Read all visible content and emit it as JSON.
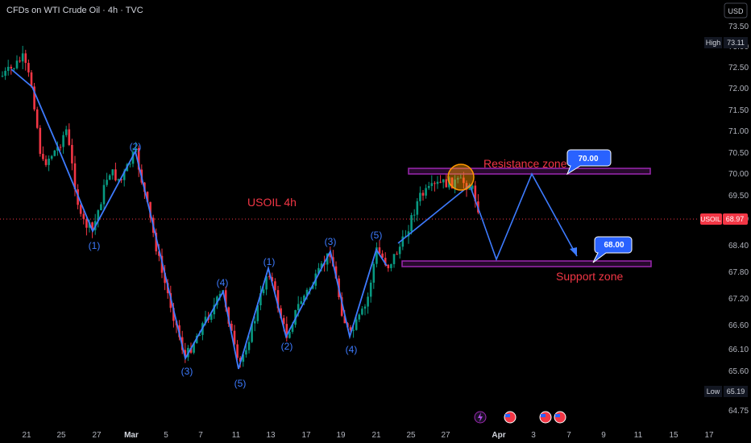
{
  "title": "CFDs on WTI Crude Oil · 4h · TVC",
  "currency": "USD",
  "symbol_label": "USOIL 4h",
  "price_badge": {
    "symbol": "USOIL",
    "value": "68.97"
  },
  "high_badge": {
    "label": "High",
    "value": "73.11"
  },
  "low_badge": {
    "label": "Low",
    "value": "65.19"
  },
  "resistance_label": "Resistance zone",
  "support_label": "Support zone",
  "callout_resistance": "70.00",
  "callout_support": "68.00",
  "colors": {
    "up": "#089981",
    "down": "#f23645",
    "wave": "#3d7bff",
    "zone": "#9c27b0",
    "bg": "#000000"
  },
  "chart_data": {
    "type": "candlestick",
    "title": "CFDs on WTI Crude Oil · 4h · TVC",
    "y_ticks": [
      "73.50",
      "73.00",
      "72.50",
      "72.00",
      "71.50",
      "71.00",
      "70.50",
      "70.00",
      "69.50",
      "69.00",
      "68.40",
      "67.80",
      "67.20",
      "66.60",
      "66.10",
      "65.60",
      "64.75"
    ],
    "x_ticks": [
      "21",
      "25",
      "27",
      "Mar",
      "5",
      "7",
      "11",
      "13",
      "17",
      "19",
      "21",
      "25",
      "27",
      "Apr",
      "3",
      "7",
      "9",
      "11",
      "15",
      "17"
    ],
    "last_price": 68.97,
    "high": 73.11,
    "low": 65.19,
    "resistance_zone": 70.0,
    "support_zone": 68.0,
    "wave_labels": [
      {
        "label": "(1)",
        "price": 68.55
      },
      {
        "label": "(2)",
        "price": 70.6
      },
      {
        "label": "(3)",
        "price": 65.65
      },
      {
        "label": "(4)",
        "price": 67.55
      },
      {
        "label": "(5)",
        "price": 65.35
      },
      {
        "label": "(1)",
        "price": 67.95
      },
      {
        "label": "(2)",
        "price": 66.1
      },
      {
        "label": "(3)",
        "price": 68.45
      },
      {
        "label": "(4)",
        "price": 66.05
      },
      {
        "label": "(5)",
        "price": 68.55
      }
    ],
    "projection": [
      69.9,
      68.1,
      70.0,
      68.0
    ]
  }
}
